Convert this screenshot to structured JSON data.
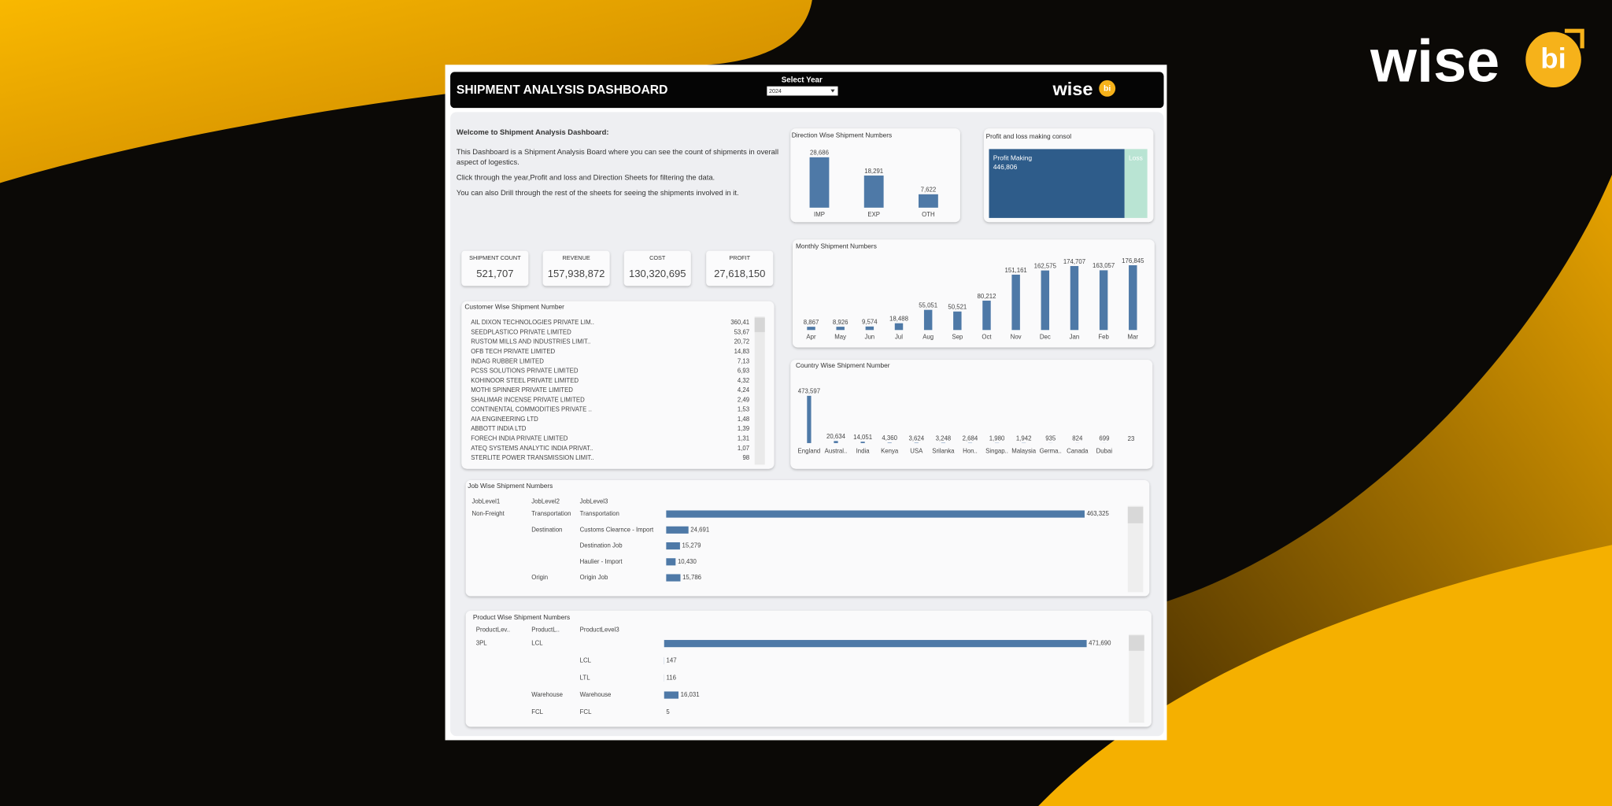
{
  "brand": {
    "logo_text": "wise",
    "logo_badge": "bi"
  },
  "header": {
    "title": "SHIPMENT ANALYSIS DASHBOARD",
    "year_label": "Select Year",
    "year_value": "2024",
    "logo_text": "wise",
    "logo_badge": "bi"
  },
  "welcome": {
    "heading": "Welcome to Shipment Analysis Dashboard:",
    "paragraphs": [
      "This Dashboard is a Shipment Analysis Board where you can see the count of shipments in overall aspect of logestics.",
      "Click through the year,Profit and loss and Direction Sheets for filtering the data.",
      "You can also Drill through the rest of the sheets for seeing the shipments involved in it."
    ]
  },
  "kpis": [
    {
      "label": "SHIPMENT COUNT",
      "value": "521,707"
    },
    {
      "label": "REVENUE",
      "value": "157,938,872"
    },
    {
      "label": "COST",
      "value": "130,320,695"
    },
    {
      "label": "PROFIT",
      "value": "27,618,150"
    }
  ],
  "customer_table": {
    "title": "Customer Wise Shipment Number",
    "rows": [
      [
        "AIL DIXON TECHNOLOGIES PRIVATE LIM..",
        "360,41"
      ],
      [
        "SEEDPLASTICO PRIVATE LIMITED",
        "53,67"
      ],
      [
        "RUSTOM MILLS AND INDUSTRIES LIMIT..",
        "20,72"
      ],
      [
        "OFB TECH PRIVATE LIMITED",
        "14,83"
      ],
      [
        "INDAG RUBBER LIMITED",
        "7,13"
      ],
      [
        "PCSS SOLUTIONS PRIVATE LIMITED",
        "6,93"
      ],
      [
        "KOHINOOR STEEL PRIVATE LIMITED",
        "4,32"
      ],
      [
        "MOTHI SPINNER PRIVATE LIMITED",
        "4,24"
      ],
      [
        "SHALIMAR INCENSE PRIVATE LIMITED",
        "2,49"
      ],
      [
        "CONTINENTAL COMMODITIES PRIVATE ..",
        "1,53"
      ],
      [
        "AIA ENGINEERING LTD",
        "1,48"
      ],
      [
        "ABBOTT INDIA LTD",
        "1,39"
      ],
      [
        "FORECH INDIA PRIVATE LIMITED",
        "1,31"
      ],
      [
        "ATEQ SYSTEMS ANALYTIC INDIA PRIVAT..",
        "1,07"
      ],
      [
        "STERLITE POWER TRANSMISSION LIMIT..",
        "98"
      ]
    ]
  },
  "chart_data": [
    {
      "type": "bar",
      "title": "Direction Wise Shipment Numbers",
      "categories": [
        "IMP",
        "EXP",
        "OTH"
      ],
      "values": [
        28686,
        18291,
        7622
      ],
      "value_labels": [
        "28,686",
        "18,291",
        "7,622"
      ],
      "color": "#4e79a7"
    },
    {
      "type": "treemap",
      "title": "Profit and loss making consol",
      "categories": [
        "Profit Making",
        "Loss"
      ],
      "values": [
        446806,
        74901
      ],
      "value_labels": [
        "446,806",
        null
      ],
      "colors": [
        "#2e5c8a",
        "#b9e4d3"
      ]
    },
    {
      "type": "bar",
      "title": "Monthly Shipment Numbers",
      "categories": [
        "Apr",
        "May",
        "Jun",
        "Jul",
        "Aug",
        "Sep",
        "Oct",
        "Nov",
        "Dec",
        "Jan",
        "Feb",
        "Mar"
      ],
      "values": [
        8867,
        8926,
        9574,
        18488,
        55051,
        50521,
        80212,
        151161,
        162575,
        174707,
        163057,
        176845
      ],
      "value_labels": [
        "8,867",
        "8,926",
        "9,574",
        "18,488",
        "55,051",
        "50,521",
        "80,212",
        "151,161",
        "162,575",
        "174,707",
        "163,057",
        "176,845"
      ],
      "color": "#4e79a7"
    },
    {
      "type": "bar",
      "title": "Country Wise Shipment Number",
      "categories": [
        "England",
        "Austral..",
        "India",
        "Kenya",
        "USA",
        "Srilanka",
        "Hon..",
        "Singap..",
        "Malaysia",
        "Germa..",
        "Canada",
        "Dubai",
        null
      ],
      "values": [
        473597,
        20634,
        14051,
        4360,
        3624,
        3248,
        2684,
        1980,
        1942,
        935,
        824,
        699,
        23
      ],
      "value_labels": [
        "473,597",
        "20,634",
        "14,051",
        "4,360",
        "3,624",
        "3,248",
        "2,684",
        "1,980",
        "1,942",
        "935",
        "824",
        "699",
        "23"
      ],
      "color": "#4e79a7"
    },
    {
      "type": "hbar",
      "title": "Job Wise Shipment Numbers",
      "level_headers": [
        "JobLevel1",
        "JobLevel2",
        "JobLevel3"
      ],
      "levels": [
        [
          "Non-Freight",
          "Transportation",
          "Transportation"
        ],
        [
          null,
          "Destination",
          "Customs Clearnce - Import"
        ],
        [
          null,
          null,
          "Destination Job"
        ],
        [
          null,
          null,
          "Haulier - Import"
        ],
        [
          null,
          "Origin",
          "Origin Job"
        ]
      ],
      "values": [
        463325,
        24691,
        15279,
        10430,
        15786
      ],
      "value_labels": [
        "463,325",
        "24,691",
        "15,279",
        "10,430",
        "15,786"
      ],
      "color": "#4e79a7"
    },
    {
      "type": "hbar",
      "title": "Product Wise Shipment Numbers",
      "level_headers": [
        "ProductLev..",
        "ProductL..",
        "ProductLevel3"
      ],
      "levels": [
        [
          "3PL",
          "LCL",
          null
        ],
        [
          null,
          null,
          "LCL"
        ],
        [
          null,
          null,
          "LTL"
        ],
        [
          null,
          "Warehouse",
          "Warehouse"
        ],
        [
          null,
          "FCL",
          "FCL"
        ]
      ],
      "values": [
        471690,
        147,
        116,
        16031,
        5
      ],
      "value_labels": [
        "471,690",
        "147",
        "116",
        "16,031",
        "5"
      ],
      "color": "#4e79a7"
    }
  ]
}
